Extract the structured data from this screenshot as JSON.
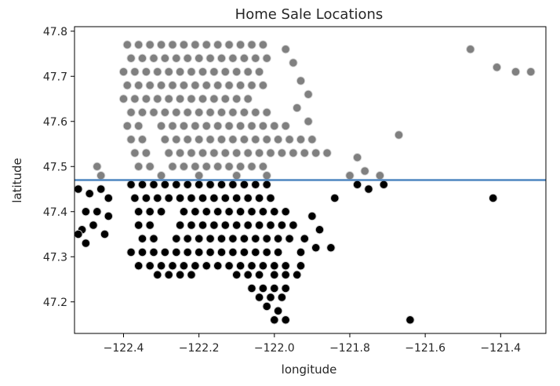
{
  "chart_data": {
    "type": "scatter",
    "title": "Home Sale Locations",
    "xlabel": "longitude",
    "ylabel": "latitude",
    "xlim": [
      -122.53,
      -121.28
    ],
    "ylim": [
      47.13,
      47.81
    ],
    "xticks": [
      -122.4,
      -122.2,
      -122.0,
      -121.8,
      -121.6,
      -121.4
    ],
    "xtick_labels": [
      "−122.4",
      "−122.2",
      "−122.0",
      "−121.8",
      "−121.6",
      "−121.4"
    ],
    "yticks": [
      47.2,
      47.3,
      47.4,
      47.5,
      47.6,
      47.7,
      47.8
    ],
    "ytick_labels": [
      "47.2",
      "47.3",
      "47.4",
      "47.5",
      "47.6",
      "47.7",
      "47.8"
    ],
    "grid": false,
    "threshold_line": {
      "y": 47.47,
      "color": "#4f86c0"
    },
    "series": [
      {
        "color": "#808080",
        "edge": "#d8d8d8",
        "points": [
          [
            -122.39,
            47.77
          ],
          [
            -122.36,
            47.77
          ],
          [
            -122.33,
            47.77
          ],
          [
            -122.3,
            47.77
          ],
          [
            -122.27,
            47.77
          ],
          [
            -122.24,
            47.77
          ],
          [
            -122.21,
            47.77
          ],
          [
            -122.18,
            47.77
          ],
          [
            -122.15,
            47.77
          ],
          [
            -122.12,
            47.77
          ],
          [
            -122.09,
            47.77
          ],
          [
            -122.06,
            47.77
          ],
          [
            -122.03,
            47.77
          ],
          [
            -122.38,
            47.74
          ],
          [
            -122.35,
            47.74
          ],
          [
            -122.32,
            47.74
          ],
          [
            -122.29,
            47.74
          ],
          [
            -122.26,
            47.74
          ],
          [
            -122.23,
            47.74
          ],
          [
            -122.2,
            47.74
          ],
          [
            -122.17,
            47.74
          ],
          [
            -122.14,
            47.74
          ],
          [
            -122.11,
            47.74
          ],
          [
            -122.08,
            47.74
          ],
          [
            -122.05,
            47.74
          ],
          [
            -122.02,
            47.74
          ],
          [
            -122.4,
            47.71
          ],
          [
            -122.37,
            47.71
          ],
          [
            -122.34,
            47.71
          ],
          [
            -122.31,
            47.71
          ],
          [
            -122.28,
            47.71
          ],
          [
            -122.25,
            47.71
          ],
          [
            -122.22,
            47.71
          ],
          [
            -122.19,
            47.71
          ],
          [
            -122.16,
            47.71
          ],
          [
            -122.13,
            47.71
          ],
          [
            -122.1,
            47.71
          ],
          [
            -122.07,
            47.71
          ],
          [
            -122.04,
            47.71
          ],
          [
            -122.39,
            47.68
          ],
          [
            -122.36,
            47.68
          ],
          [
            -122.33,
            47.68
          ],
          [
            -122.3,
            47.68
          ],
          [
            -122.27,
            47.68
          ],
          [
            -122.24,
            47.68
          ],
          [
            -122.21,
            47.68
          ],
          [
            -122.18,
            47.68
          ],
          [
            -122.15,
            47.68
          ],
          [
            -122.12,
            47.68
          ],
          [
            -122.09,
            47.68
          ],
          [
            -122.06,
            47.68
          ],
          [
            -122.03,
            47.68
          ],
          [
            -122.4,
            47.65
          ],
          [
            -122.37,
            47.65
          ],
          [
            -122.34,
            47.65
          ],
          [
            -122.31,
            47.65
          ],
          [
            -122.28,
            47.65
          ],
          [
            -122.25,
            47.65
          ],
          [
            -122.22,
            47.65
          ],
          [
            -122.19,
            47.65
          ],
          [
            -122.16,
            47.65
          ],
          [
            -122.13,
            47.65
          ],
          [
            -122.1,
            47.65
          ],
          [
            -122.07,
            47.65
          ],
          [
            -122.38,
            47.62
          ],
          [
            -122.35,
            47.62
          ],
          [
            -122.32,
            47.62
          ],
          [
            -122.29,
            47.62
          ],
          [
            -122.26,
            47.62
          ],
          [
            -122.23,
            47.62
          ],
          [
            -122.2,
            47.62
          ],
          [
            -122.17,
            47.62
          ],
          [
            -122.14,
            47.62
          ],
          [
            -122.11,
            47.62
          ],
          [
            -122.08,
            47.62
          ],
          [
            -122.05,
            47.62
          ],
          [
            -122.02,
            47.62
          ],
          [
            -122.39,
            47.59
          ],
          [
            -122.36,
            47.59
          ],
          [
            -122.3,
            47.59
          ],
          [
            -122.27,
            47.59
          ],
          [
            -122.24,
            47.59
          ],
          [
            -122.21,
            47.59
          ],
          [
            -122.18,
            47.59
          ],
          [
            -122.15,
            47.59
          ],
          [
            -122.12,
            47.59
          ],
          [
            -122.09,
            47.59
          ],
          [
            -122.06,
            47.59
          ],
          [
            -122.03,
            47.59
          ],
          [
            -122.0,
            47.59
          ],
          [
            -121.97,
            47.59
          ],
          [
            -122.38,
            47.56
          ],
          [
            -122.35,
            47.56
          ],
          [
            -122.29,
            47.56
          ],
          [
            -122.26,
            47.56
          ],
          [
            -122.23,
            47.56
          ],
          [
            -122.2,
            47.56
          ],
          [
            -122.17,
            47.56
          ],
          [
            -122.14,
            47.56
          ],
          [
            -122.11,
            47.56
          ],
          [
            -122.08,
            47.56
          ],
          [
            -122.05,
            47.56
          ],
          [
            -122.02,
            47.56
          ],
          [
            -121.99,
            47.56
          ],
          [
            -121.96,
            47.56
          ],
          [
            -121.93,
            47.56
          ],
          [
            -121.9,
            47.56
          ],
          [
            -122.37,
            47.53
          ],
          [
            -122.34,
            47.53
          ],
          [
            -122.28,
            47.53
          ],
          [
            -122.25,
            47.53
          ],
          [
            -122.22,
            47.53
          ],
          [
            -122.19,
            47.53
          ],
          [
            -122.16,
            47.53
          ],
          [
            -122.13,
            47.53
          ],
          [
            -122.1,
            47.53
          ],
          [
            -122.07,
            47.53
          ],
          [
            -122.04,
            47.53
          ],
          [
            -122.01,
            47.53
          ],
          [
            -121.98,
            47.53
          ],
          [
            -121.95,
            47.53
          ],
          [
            -121.92,
            47.53
          ],
          [
            -121.89,
            47.53
          ],
          [
            -121.86,
            47.53
          ],
          [
            -122.36,
            47.5
          ],
          [
            -122.33,
            47.5
          ],
          [
            -122.27,
            47.5
          ],
          [
            -122.24,
            47.5
          ],
          [
            -122.21,
            47.5
          ],
          [
            -122.18,
            47.5
          ],
          [
            -122.15,
            47.5
          ],
          [
            -122.12,
            47.5
          ],
          [
            -122.09,
            47.5
          ],
          [
            -122.06,
            47.5
          ],
          [
            -122.03,
            47.5
          ],
          [
            -122.3,
            47.48
          ],
          [
            -122.2,
            47.48
          ],
          [
            -122.1,
            47.48
          ],
          [
            -122.02,
            47.48
          ],
          [
            -121.97,
            47.76
          ],
          [
            -121.95,
            47.73
          ],
          [
            -121.93,
            47.69
          ],
          [
            -121.91,
            47.66
          ],
          [
            -121.94,
            47.63
          ],
          [
            -121.91,
            47.6
          ],
          [
            -121.78,
            47.52
          ],
          [
            -121.76,
            47.49
          ],
          [
            -121.72,
            47.48
          ],
          [
            -121.8,
            47.48
          ],
          [
            -121.67,
            47.57
          ],
          [
            -121.48,
            47.76
          ],
          [
            -121.41,
            47.72
          ],
          [
            -121.36,
            47.71
          ],
          [
            -121.32,
            47.71
          ],
          [
            -122.47,
            47.5
          ],
          [
            -122.46,
            47.48
          ]
        ]
      },
      {
        "color": "#000000",
        "edge": "#cfcfcf",
        "points": [
          [
            -122.52,
            47.45
          ],
          [
            -122.49,
            47.44
          ],
          [
            -122.46,
            47.45
          ],
          [
            -122.44,
            47.43
          ],
          [
            -122.5,
            47.4
          ],
          [
            -122.47,
            47.4
          ],
          [
            -122.44,
            47.39
          ],
          [
            -122.51,
            47.36
          ],
          [
            -122.48,
            47.37
          ],
          [
            -122.45,
            47.35
          ],
          [
            -122.52,
            47.35
          ],
          [
            -122.5,
            47.33
          ],
          [
            -122.38,
            47.46
          ],
          [
            -122.35,
            47.46
          ],
          [
            -122.32,
            47.46
          ],
          [
            -122.29,
            47.46
          ],
          [
            -122.26,
            47.46
          ],
          [
            -122.23,
            47.46
          ],
          [
            -122.2,
            47.46
          ],
          [
            -122.17,
            47.46
          ],
          [
            -122.14,
            47.46
          ],
          [
            -122.11,
            47.46
          ],
          [
            -122.08,
            47.46
          ],
          [
            -122.05,
            47.46
          ],
          [
            -122.02,
            47.46
          ],
          [
            -122.37,
            47.43
          ],
          [
            -122.34,
            47.43
          ],
          [
            -122.31,
            47.43
          ],
          [
            -122.28,
            47.43
          ],
          [
            -122.25,
            47.43
          ],
          [
            -122.22,
            47.43
          ],
          [
            -122.19,
            47.43
          ],
          [
            -122.16,
            47.43
          ],
          [
            -122.13,
            47.43
          ],
          [
            -122.1,
            47.43
          ],
          [
            -122.07,
            47.43
          ],
          [
            -122.04,
            47.43
          ],
          [
            -122.01,
            47.43
          ],
          [
            -122.36,
            47.4
          ],
          [
            -122.33,
            47.4
          ],
          [
            -122.3,
            47.4
          ],
          [
            -122.24,
            47.4
          ],
          [
            -122.21,
            47.4
          ],
          [
            -122.18,
            47.4
          ],
          [
            -122.15,
            47.4
          ],
          [
            -122.12,
            47.4
          ],
          [
            -122.09,
            47.4
          ],
          [
            -122.06,
            47.4
          ],
          [
            -122.03,
            47.4
          ],
          [
            -122.0,
            47.4
          ],
          [
            -121.97,
            47.4
          ],
          [
            -122.36,
            47.37
          ],
          [
            -122.33,
            47.37
          ],
          [
            -122.25,
            47.37
          ],
          [
            -122.22,
            47.37
          ],
          [
            -122.19,
            47.37
          ],
          [
            -122.16,
            47.37
          ],
          [
            -122.13,
            47.37
          ],
          [
            -122.1,
            47.37
          ],
          [
            -122.07,
            47.37
          ],
          [
            -122.04,
            47.37
          ],
          [
            -122.01,
            47.37
          ],
          [
            -121.98,
            47.37
          ],
          [
            -121.95,
            47.37
          ],
          [
            -122.35,
            47.34
          ],
          [
            -122.32,
            47.34
          ],
          [
            -122.26,
            47.34
          ],
          [
            -122.23,
            47.34
          ],
          [
            -122.2,
            47.34
          ],
          [
            -122.17,
            47.34
          ],
          [
            -122.14,
            47.34
          ],
          [
            -122.11,
            47.34
          ],
          [
            -122.08,
            47.34
          ],
          [
            -122.05,
            47.34
          ],
          [
            -122.02,
            47.34
          ],
          [
            -121.99,
            47.34
          ],
          [
            -121.96,
            47.34
          ],
          [
            -121.92,
            47.34
          ],
          [
            -122.38,
            47.31
          ],
          [
            -122.35,
            47.31
          ],
          [
            -122.32,
            47.31
          ],
          [
            -122.29,
            47.31
          ],
          [
            -122.26,
            47.31
          ],
          [
            -122.23,
            47.31
          ],
          [
            -122.2,
            47.31
          ],
          [
            -122.17,
            47.31
          ],
          [
            -122.14,
            47.31
          ],
          [
            -122.11,
            47.31
          ],
          [
            -122.08,
            47.31
          ],
          [
            -122.05,
            47.31
          ],
          [
            -122.02,
            47.31
          ],
          [
            -121.99,
            47.31
          ],
          [
            -121.93,
            47.31
          ],
          [
            -122.36,
            47.28
          ],
          [
            -122.33,
            47.28
          ],
          [
            -122.3,
            47.28
          ],
          [
            -122.27,
            47.28
          ],
          [
            -122.24,
            47.28
          ],
          [
            -122.21,
            47.28
          ],
          [
            -122.18,
            47.28
          ],
          [
            -122.15,
            47.28
          ],
          [
            -122.12,
            47.28
          ],
          [
            -122.09,
            47.28
          ],
          [
            -122.06,
            47.28
          ],
          [
            -122.03,
            47.28
          ],
          [
            -122.0,
            47.28
          ],
          [
            -121.97,
            47.28
          ],
          [
            -121.93,
            47.28
          ],
          [
            -122.31,
            47.26
          ],
          [
            -122.28,
            47.26
          ],
          [
            -122.25,
            47.26
          ],
          [
            -122.22,
            47.26
          ],
          [
            -122.1,
            47.26
          ],
          [
            -122.07,
            47.26
          ],
          [
            -122.04,
            47.26
          ],
          [
            -122.0,
            47.26
          ],
          [
            -121.97,
            47.26
          ],
          [
            -121.94,
            47.26
          ],
          [
            -122.06,
            47.23
          ],
          [
            -122.03,
            47.23
          ],
          [
            -122.0,
            47.23
          ],
          [
            -121.97,
            47.23
          ],
          [
            -122.04,
            47.21
          ],
          [
            -122.01,
            47.21
          ],
          [
            -121.98,
            47.21
          ],
          [
            -122.02,
            47.19
          ],
          [
            -121.99,
            47.18
          ],
          [
            -122.0,
            47.16
          ],
          [
            -121.97,
            47.16
          ],
          [
            -121.9,
            47.39
          ],
          [
            -121.88,
            47.36
          ],
          [
            -121.89,
            47.32
          ],
          [
            -121.85,
            47.32
          ],
          [
            -121.84,
            47.43
          ],
          [
            -121.78,
            47.46
          ],
          [
            -121.75,
            47.45
          ],
          [
            -121.71,
            47.46
          ],
          [
            -121.42,
            47.43
          ],
          [
            -121.64,
            47.16
          ]
        ]
      }
    ]
  }
}
